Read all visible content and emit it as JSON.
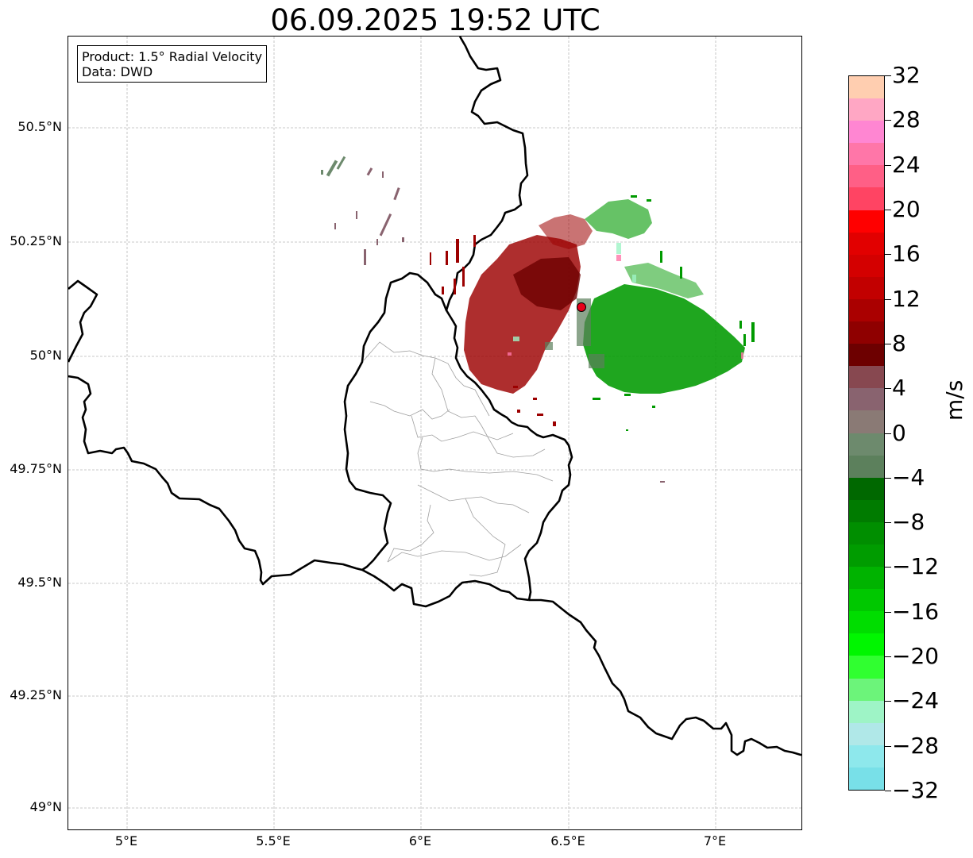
{
  "title": "06.09.2025 19:52 UTC",
  "info": {
    "product": "Product: 1.5° Radial Velocity",
    "source": "Data: DWD"
  },
  "axes": {
    "lat_labels": [
      "50.5°N",
      "50.25°N",
      "50°N",
      "49.75°N",
      "49.5°N",
      "49.25°N",
      "49°N"
    ],
    "lon_labels": [
      "5°E",
      "5.5°E",
      "6°E",
      "6.5°E",
      "7°E"
    ]
  },
  "colorbar": {
    "unit": "m/s",
    "labels": [
      "32",
      "28",
      "24",
      "20",
      "16",
      "12",
      "8",
      "4",
      "0",
      "−4",
      "−8",
      "−12",
      "−16",
      "−20",
      "−24",
      "−28",
      "−32"
    ],
    "colors_top_to_bottom": [
      "#ffceb0",
      "#ffa7c4",
      "#ff86d2",
      "#ff76a8",
      "#ff5f86",
      "#ff4463",
      "#ff0000",
      "#e20000",
      "#d40000",
      "#c20000",
      "#aa0000",
      "#8f0000",
      "#6d0000",
      "#874850",
      "#89636f",
      "#8a7a75",
      "#6d8a6d",
      "#5c805c",
      "#006800",
      "#007b00",
      "#008e00",
      "#009c00",
      "#00b300",
      "#00c800",
      "#00dd00",
      "#00f600",
      "#30ff30",
      "#6cf47a",
      "#9ef4c6",
      "#b0e8e8",
      "#8ee8ec",
      "#78e0e8"
    ]
  },
  "map": {
    "radar_site_color": "#e8001a",
    "inbound_color": "#009a00",
    "outbound_color": "#9c0000"
  }
}
